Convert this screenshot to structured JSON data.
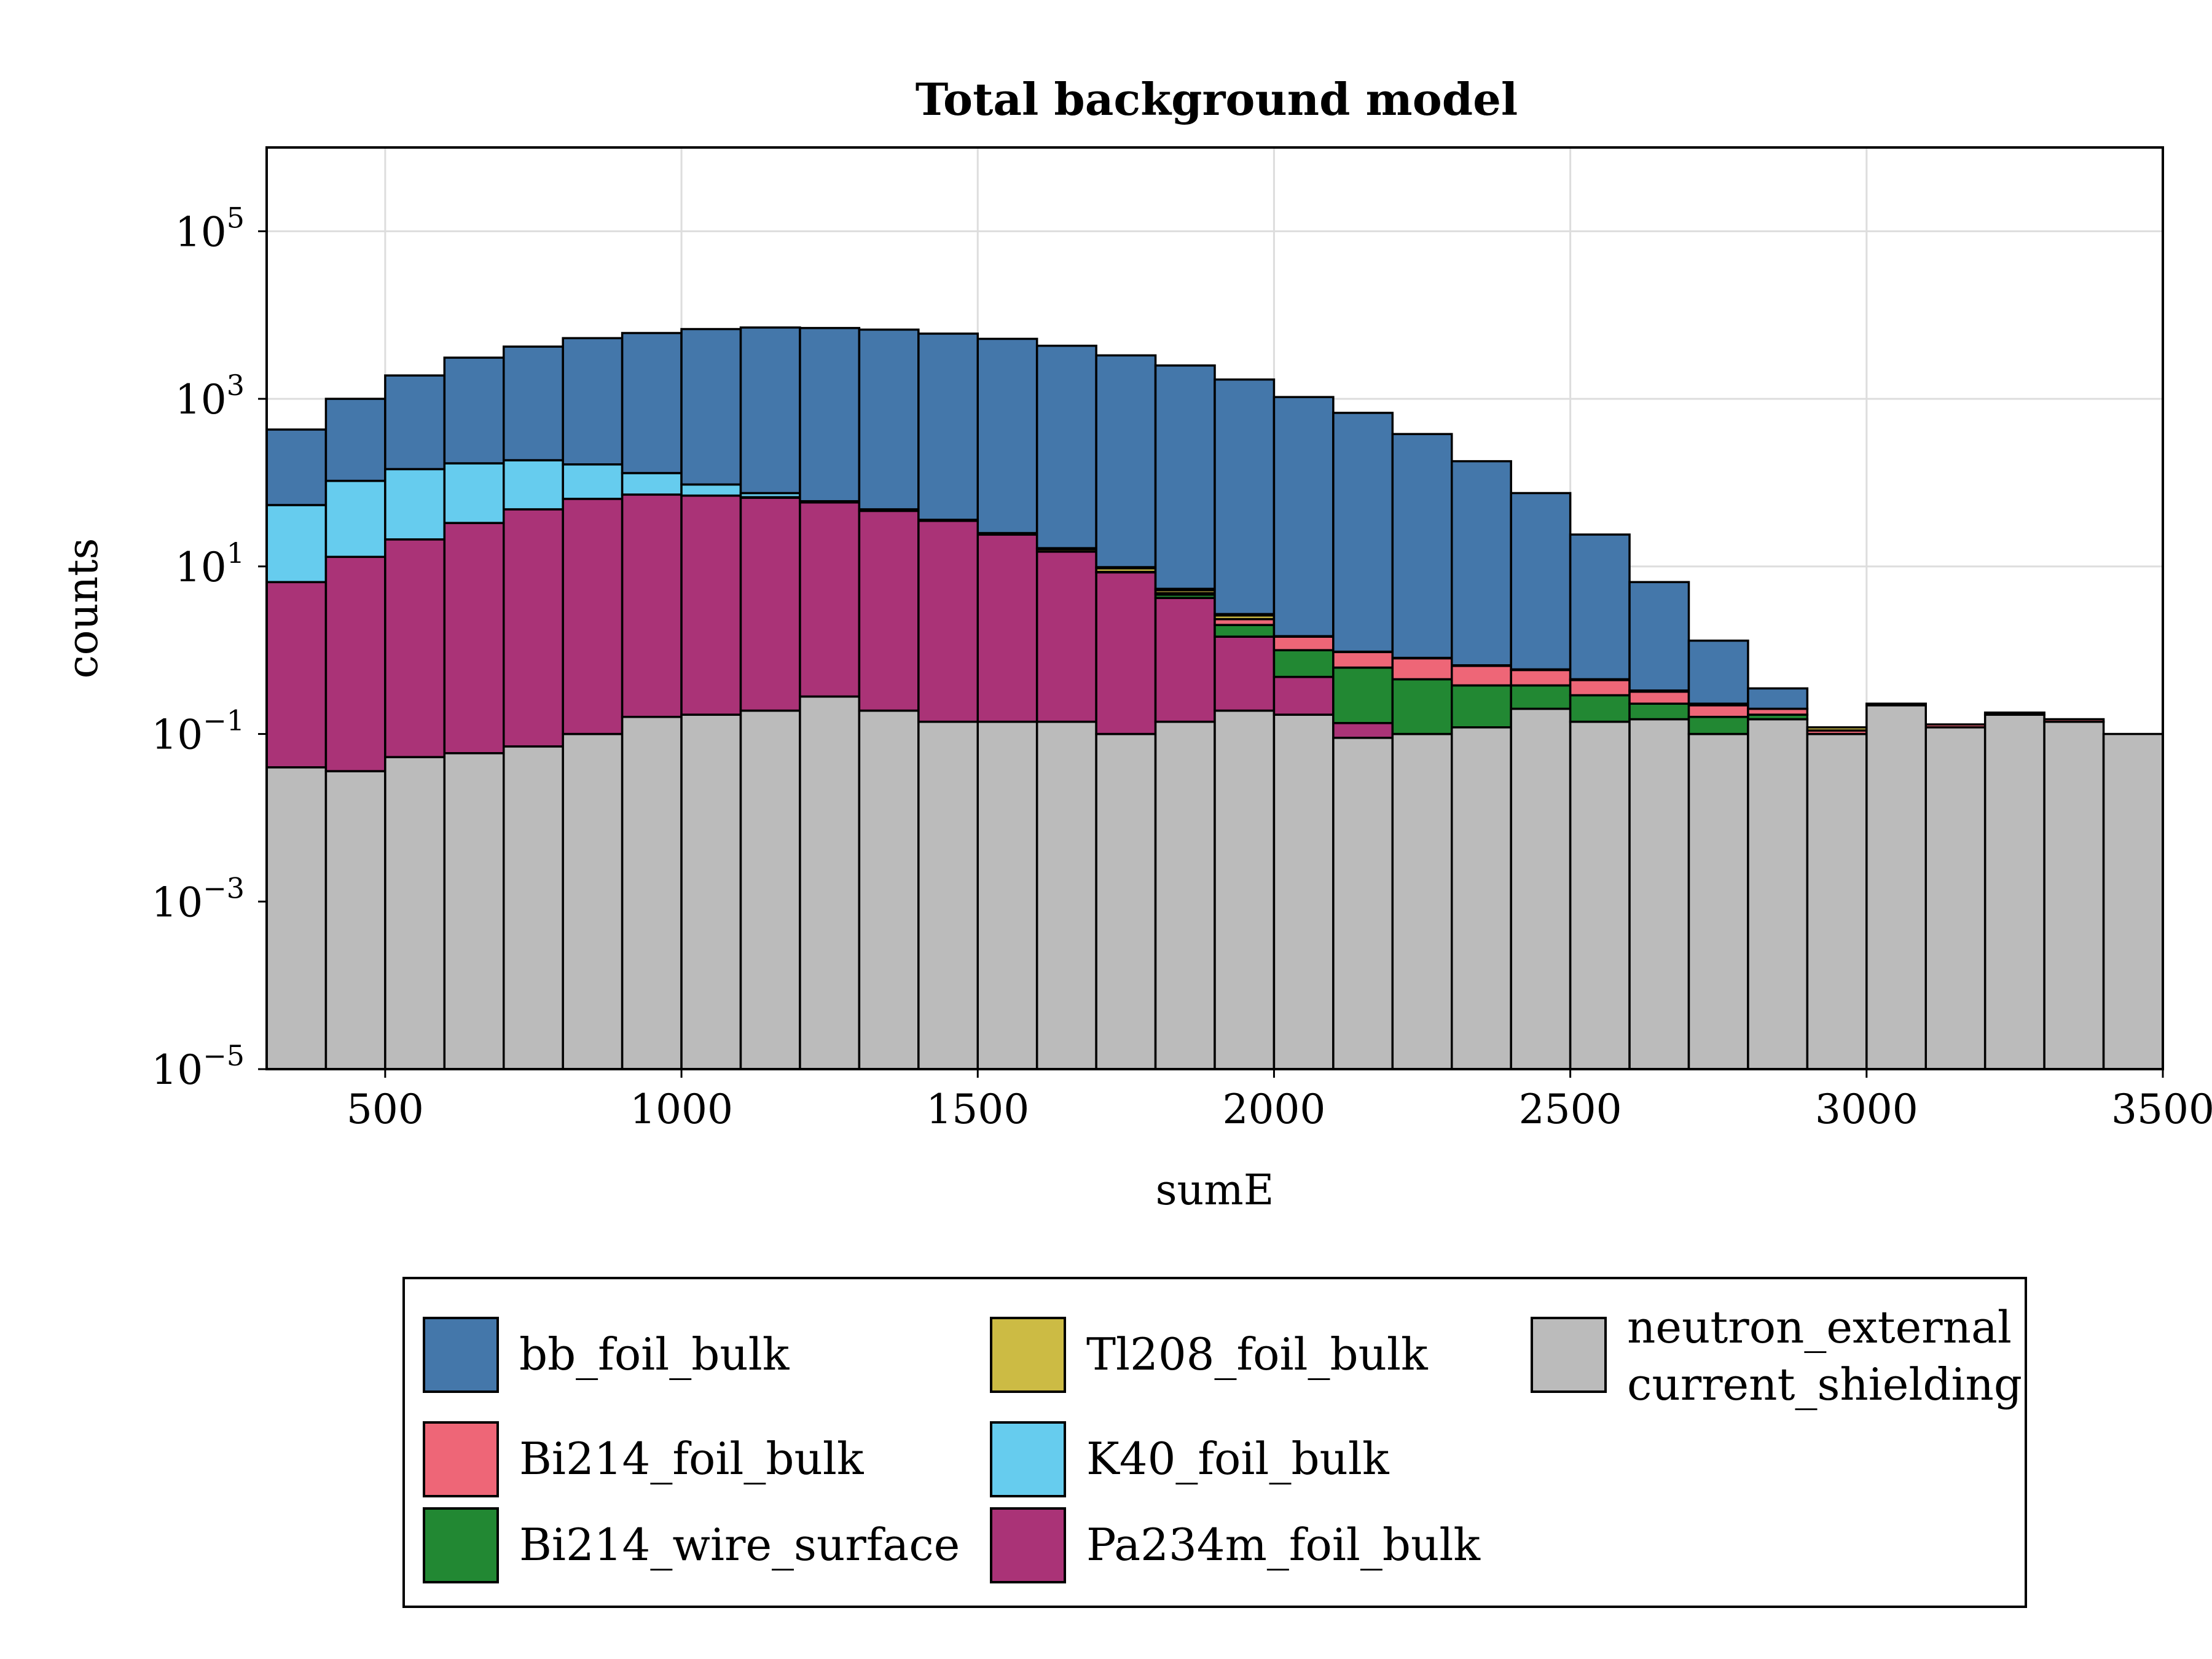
{
  "chart_data": {
    "type": "bar",
    "stacked": true,
    "title": "Total background model",
    "xlabel": "sumE",
    "ylabel": "counts",
    "xlim": [
      300,
      3500
    ],
    "ylim_exponents": [
      -5,
      6
    ],
    "yscale": "log",
    "grid": true,
    "legend_position": "below",
    "x_ticks": [
      "500",
      "1000",
      "1500",
      "2000",
      "2500",
      "3000",
      "3500"
    ],
    "y_tick_labels": [
      {
        "base": "10",
        "exp": "5"
      },
      {
        "base": "10",
        "exp": "3"
      },
      {
        "base": "10",
        "exp": "1"
      },
      {
        "base": "10",
        "exp": "−1"
      },
      {
        "base": "10",
        "exp": "−3"
      },
      {
        "base": "10",
        "exp": "−5"
      }
    ],
    "bin_edges": [
      300,
      400,
      500,
      600,
      700,
      800,
      900,
      1000,
      1100,
      1200,
      1300,
      1400,
      1500,
      1600,
      1700,
      1800,
      1900,
      2000,
      2100,
      2200,
      2300,
      2400,
      2500,
      2600,
      2700,
      2800,
      2900,
      3000,
      3100,
      3200,
      3300,
      3400,
      3500
    ],
    "stack_tops": [
      {
        "name": "neutron_external / current_shielding",
        "color": "#bbbbbb",
        "values": [
          0.04,
          0.036,
          0.053,
          0.059,
          0.071,
          0.1,
          0.16,
          0.17,
          0.19,
          0.28,
          0.19,
          0.14,
          0.14,
          0.14,
          0.1,
          0.14,
          0.19,
          0.17,
          0.09,
          0.1,
          0.12,
          0.2,
          0.14,
          0.15,
          0.1,
          0.15,
          0.1,
          0.22,
          0.12,
          0.17,
          0.14,
          0.1
        ]
      },
      {
        "name": "Pa234m_foil_bulk",
        "color": "#aa3377",
        "values": [
          6.5,
          13,
          21,
          33,
          48,
          64,
          72,
          70,
          66,
          58,
          46,
          35,
          24,
          15,
          8.5,
          4.2,
          1.45,
          0.48,
          0.135,
          0.1,
          0.12,
          0.2,
          0.14,
          0.15,
          0.1,
          0.15,
          0.1,
          0.22,
          0.12,
          0.17,
          0.14,
          0.1
        ]
      },
      {
        "name": "Bi214_wire_surface",
        "color": "#228833",
        "values": [
          6.5,
          13,
          21,
          33,
          48,
          64,
          72,
          70,
          66,
          58,
          46,
          35,
          24,
          15,
          8.5,
          4.6,
          2.0,
          1.0,
          0.62,
          0.45,
          0.38,
          0.38,
          0.29,
          0.23,
          0.16,
          0.17,
          0.1,
          0.22,
          0.12,
          0.17,
          0.14,
          0.1
        ]
      },
      {
        "name": "Bi214_foil_bulk",
        "color": "#ee6677",
        "values": [
          6.5,
          13,
          21,
          33,
          48,
          64,
          72,
          70,
          66,
          58,
          46,
          35,
          24,
          15,
          8.6,
          4.8,
          2.35,
          1.45,
          0.95,
          0.8,
          0.65,
          0.58,
          0.44,
          0.32,
          0.22,
          0.2,
          0.11,
          0.23,
          0.13,
          0.18,
          0.15,
          0.1
        ]
      },
      {
        "name": "Tl208_foil_bulk",
        "color": "#ccbb44",
        "values": [
          6.5,
          13,
          21,
          33,
          48,
          64,
          72,
          70,
          67,
          59,
          47,
          36,
          25,
          16,
          9.5,
          5.2,
          2.6,
          1.45,
          0.95,
          0.8,
          0.65,
          0.58,
          0.44,
          0.32,
          0.22,
          0.2,
          0.12,
          0.23,
          0.13,
          0.18,
          0.15,
          0.1
        ]
      },
      {
        "name": "K40_foil_bulk",
        "color": "#66ccee",
        "values": [
          54,
          105,
          145,
          170,
          185,
          165,
          130,
          95,
          75,
          60,
          48,
          36,
          25,
          16.5,
          9.8,
          5.4,
          2.7,
          1.47,
          0.96,
          0.81,
          0.66,
          0.59,
          0.45,
          0.33,
          0.23,
          0.2,
          0.12,
          0.23,
          0.13,
          0.18,
          0.15,
          0.1
        ]
      },
      {
        "name": "bb_foil_bulk",
        "color": "#4477aa",
        "values": [
          430,
          1000,
          1900,
          3100,
          4200,
          5300,
          6100,
          6800,
          7100,
          7000,
          6700,
          6000,
          5200,
          4300,
          3300,
          2500,
          1700,
          1050,
          680,
          380,
          180,
          75,
          24,
          6.5,
          1.3,
          0.35,
          0.12,
          0.23,
          0.13,
          0.18,
          0.15,
          0.1
        ]
      }
    ],
    "legend": {
      "entries": [
        {
          "label": "bb_foil_bulk",
          "color": "#4477aa"
        },
        {
          "label": "Tl208_foil_bulk",
          "color": "#ccbb44"
        },
        {
          "label": "neutron_external",
          "label2": "current_shielding",
          "color": "#bbbbbb"
        },
        {
          "label": "Bi214_foil_bulk",
          "color": "#ee6677"
        },
        {
          "label": "K40_foil_bulk",
          "color": "#66ccee"
        },
        {
          "label": "Bi214_wire_surface",
          "color": "#228833"
        },
        {
          "label": "Pa234m_foil_bulk",
          "color": "#aa3377"
        }
      ]
    }
  }
}
